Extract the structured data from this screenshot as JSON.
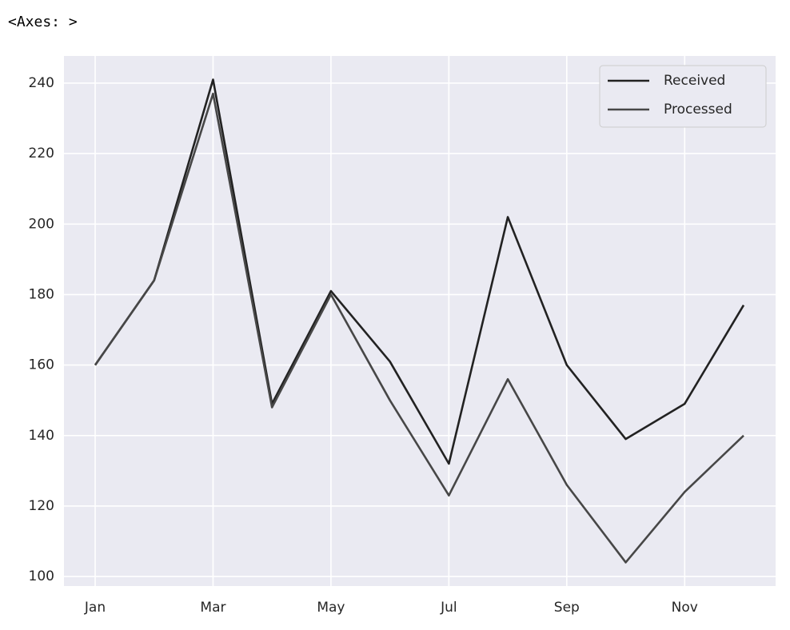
{
  "output_label": "<Axes: >",
  "chart_data": {
    "type": "line",
    "categories": [
      "Jan",
      null,
      "Mar",
      null,
      "May",
      null,
      "Jul",
      null,
      "Sep",
      null,
      "Nov",
      null
    ],
    "series": [
      {
        "name": "Received",
        "color": "#222222",
        "values": [
          160,
          184,
          241,
          149,
          181,
          161,
          132,
          202,
          160,
          139,
          149,
          177
        ]
      },
      {
        "name": "Processed",
        "color": "#474747",
        "values": [
          160,
          184,
          237,
          148,
          180,
          150,
          123,
          156,
          126,
          104,
          124,
          140
        ]
      }
    ],
    "ylim": [
      97.3,
      247.7
    ],
    "yticks": [
      100,
      120,
      140,
      160,
      180,
      200,
      220,
      240
    ],
    "grid": true,
    "legend": "upper right"
  }
}
